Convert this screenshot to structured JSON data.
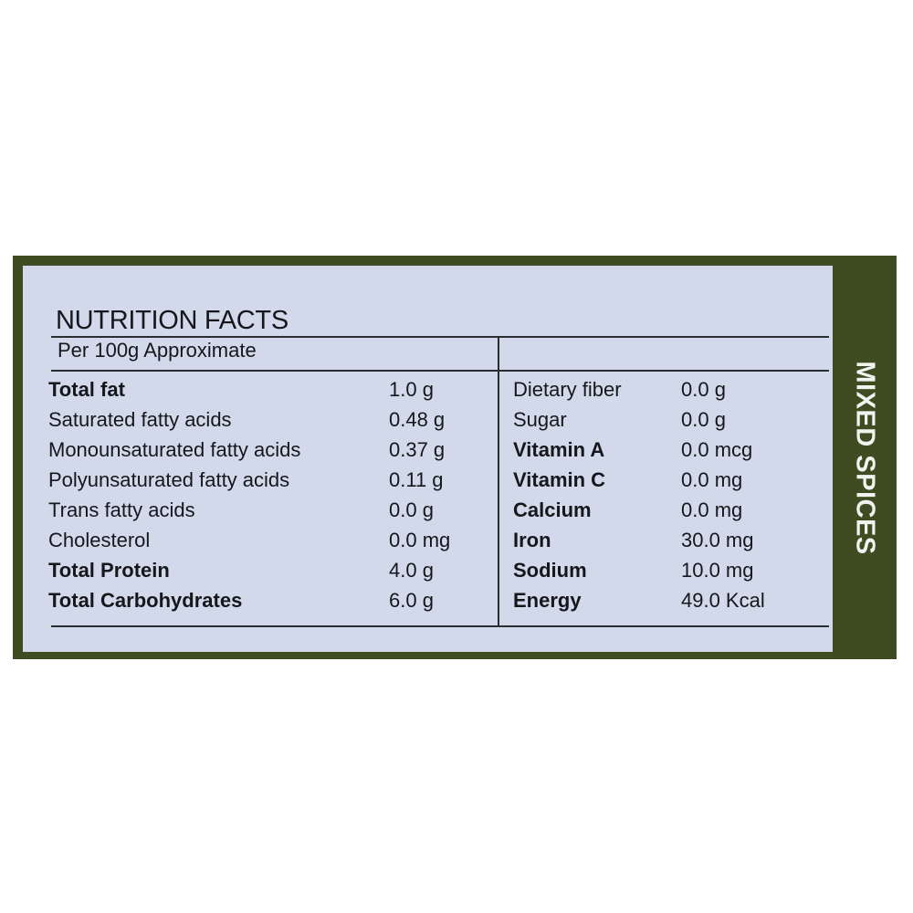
{
  "label": {
    "title": "NUTRITION FACTS",
    "serving": "Per 100g Approximate",
    "side_text": "MIXED SPICES",
    "colors": {
      "frame": "#3f4c22",
      "panel": "#d2d9ea",
      "text": "#15171c"
    },
    "left_rows": [
      {
        "name": "Total fat",
        "value": "1.0 g",
        "bold": true
      },
      {
        "name": "Saturated fatty acids",
        "value": "0.48 g",
        "bold": false
      },
      {
        "name": "Monounsaturated fatty acids",
        "value": "0.37 g",
        "bold": false
      },
      {
        "name": "Polyunsaturated fatty acids",
        "value": "0.11 g",
        "bold": false
      },
      {
        "name": "Trans fatty acids",
        "value": "0.0 g",
        "bold": false
      },
      {
        "name": "Cholesterol",
        "value": "0.0 mg",
        "bold": false
      },
      {
        "name": "Total Protein",
        "value": "4.0 g",
        "bold": true
      },
      {
        "name": "Total Carbohydrates",
        "value": "6.0 g",
        "bold": true
      }
    ],
    "right_rows": [
      {
        "name": "Dietary fiber",
        "value": "0.0 g",
        "bold": false
      },
      {
        "name": "Sugar",
        "value": "0.0 g",
        "bold": false
      },
      {
        "name": "Vitamin A",
        "value": "0.0 mcg",
        "bold": true
      },
      {
        "name": "Vitamin C",
        "value": "0.0 mg",
        "bold": true
      },
      {
        "name": "Calcium",
        "value": "0.0 mg",
        "bold": true
      },
      {
        "name": "Iron",
        "value": "30.0 mg",
        "bold": true
      },
      {
        "name": "Sodium",
        "value": "10.0 mg",
        "bold": true
      },
      {
        "name": "Energy",
        "value": "49.0 Kcal",
        "bold": true
      }
    ]
  }
}
